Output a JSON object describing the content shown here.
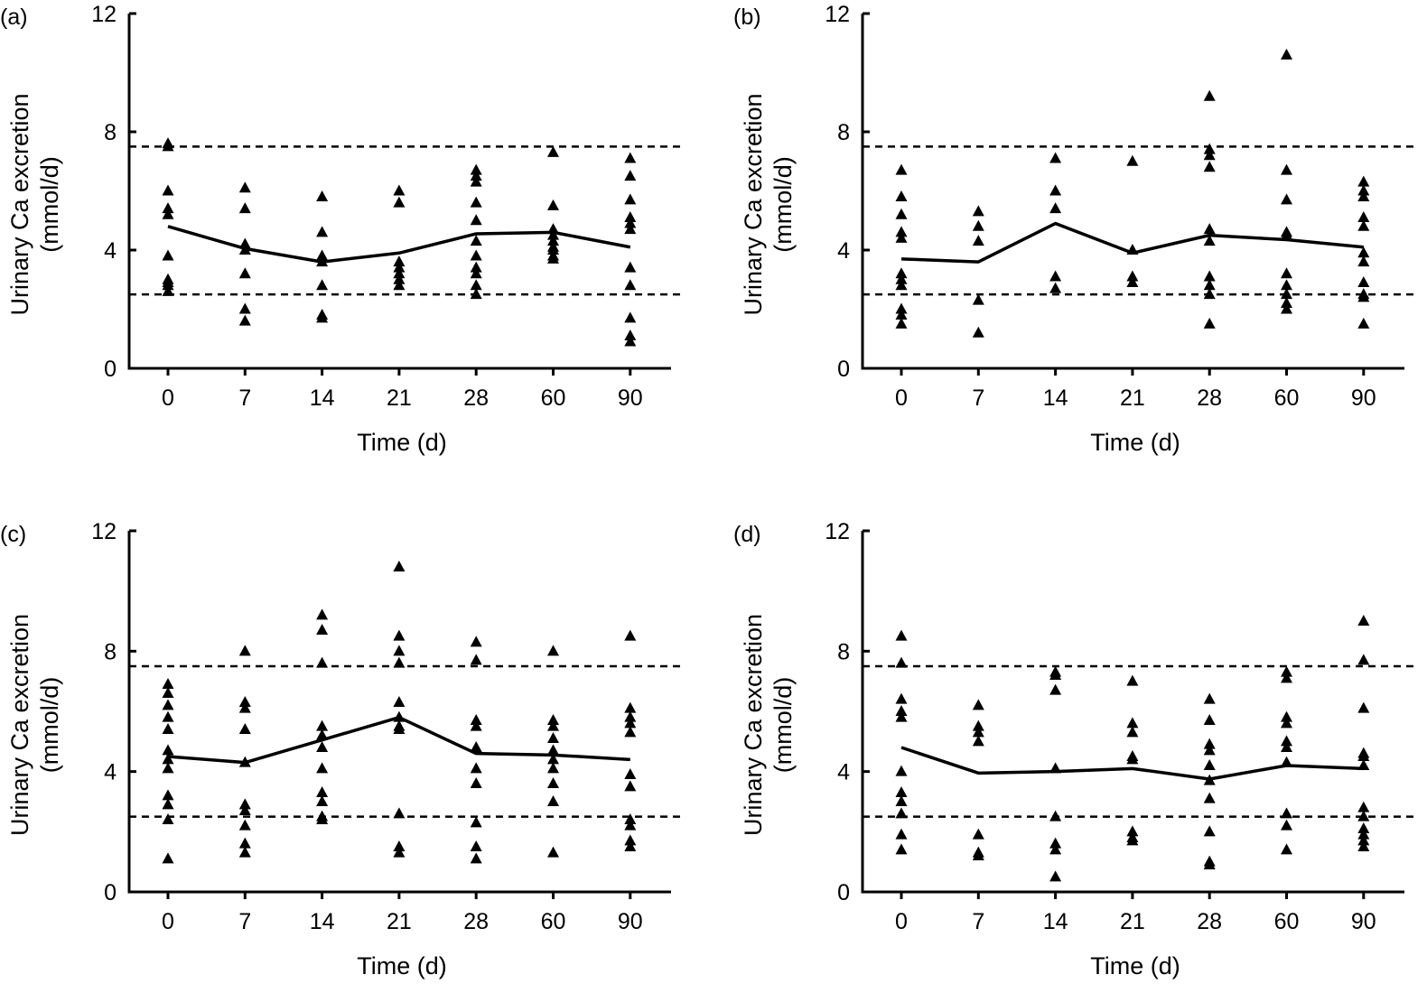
{
  "chart_data": [
    {
      "type": "scatter",
      "panel_label": "(a)",
      "xlabel": "Time (d)",
      "ylabel": "Urinary Ca excretion",
      "ylabel_unit": "(mmol/d)",
      "categories": [
        "0",
        "7",
        "14",
        "21",
        "28",
        "60",
        "90"
      ],
      "ylim": [
        0,
        12
      ],
      "yticks": [
        0,
        4,
        8,
        12
      ],
      "reference_lines": [
        2.5,
        7.5
      ],
      "points": [
        [
          7.6,
          7.5,
          6.0,
          5.4,
          5.2,
          3.8,
          3.0,
          2.9,
          2.8,
          2.6
        ],
        [
          6.1,
          5.4,
          4.2,
          4.0,
          3.2,
          2.0,
          1.6
        ],
        [
          5.8,
          4.6,
          3.8,
          3.6,
          2.8,
          1.8,
          1.7
        ],
        [
          6.0,
          5.6,
          3.6,
          3.4,
          3.2,
          3.0,
          2.8
        ],
        [
          6.7,
          6.5,
          6.3,
          5.6,
          5.0,
          4.3,
          3.8,
          3.4,
          3.2,
          2.8,
          2.5
        ],
        [
          7.3,
          5.5,
          4.7,
          4.5,
          4.3,
          4.1,
          4.0,
          3.8,
          3.7
        ],
        [
          7.1,
          6.5,
          5.7,
          5.1,
          4.9,
          4.7,
          3.4,
          2.8,
          1.7,
          1.1,
          0.9
        ]
      ],
      "mean_line": [
        4.8,
        4.05,
        3.6,
        3.9,
        4.55,
        4.6,
        4.1
      ]
    },
    {
      "type": "scatter",
      "panel_label": "(b)",
      "xlabel": "Time (d)",
      "ylabel": "Urinary Ca excretion",
      "ylabel_unit": "(mmol/d)",
      "categories": [
        "0",
        "7",
        "14",
        "21",
        "28",
        "60",
        "90"
      ],
      "ylim": [
        0,
        12
      ],
      "yticks": [
        0,
        4,
        8,
        12
      ],
      "reference_lines": [
        2.5,
        7.5
      ],
      "points": [
        [
          6.7,
          5.8,
          5.2,
          4.6,
          4.4,
          3.2,
          3.0,
          2.8,
          2.0,
          1.8,
          1.5
        ],
        [
          5.3,
          4.8,
          4.3,
          2.3,
          1.2
        ],
        [
          7.1,
          6.0,
          5.4,
          3.1,
          2.7
        ],
        [
          7.0,
          4.0,
          3.1,
          2.9
        ],
        [
          9.2,
          7.4,
          7.2,
          6.8,
          4.7,
          4.3,
          3.1,
          2.8,
          2.5,
          1.5
        ],
        [
          10.6,
          6.7,
          5.7,
          4.6,
          4.5,
          3.2,
          2.8,
          2.5,
          2.2,
          2.0
        ],
        [
          6.3,
          6.0,
          5.8,
          5.1,
          4.8,
          3.9,
          3.6,
          2.9,
          2.5,
          2.4,
          1.5
        ]
      ],
      "mean_line": [
        3.7,
        3.6,
        4.9,
        3.9,
        4.5,
        4.35,
        4.1
      ]
    },
    {
      "type": "scatter",
      "panel_label": "(c)",
      "xlabel": "Time (d)",
      "ylabel": "Urinary Ca excretion",
      "ylabel_unit": "(mmol/d)",
      "categories": [
        "0",
        "7",
        "14",
        "21",
        "28",
        "60",
        "90"
      ],
      "ylim": [
        0,
        12
      ],
      "yticks": [
        0,
        4,
        8,
        12
      ],
      "reference_lines": [
        2.5,
        7.5
      ],
      "points": [
        [
          6.9,
          6.6,
          6.2,
          5.8,
          5.4,
          4.7,
          4.4,
          4.1,
          3.2,
          2.9,
          2.4,
          1.1
        ],
        [
          8.0,
          6.3,
          6.1,
          5.4,
          4.3,
          2.9,
          2.7,
          2.2,
          1.6,
          1.3
        ],
        [
          9.2,
          8.7,
          7.6,
          5.5,
          5.2,
          4.8,
          4.1,
          3.3,
          3.0,
          2.5,
          2.4
        ],
        [
          10.8,
          8.5,
          8.0,
          7.6,
          6.3,
          5.8,
          5.5,
          5.4,
          2.6,
          1.5,
          1.3
        ],
        [
          8.3,
          7.7,
          5.7,
          5.5,
          4.8,
          4.1,
          3.6,
          2.3,
          1.5,
          1.1
        ],
        [
          8.0,
          5.7,
          5.5,
          5.1,
          4.7,
          4.4,
          4.1,
          3.6,
          3.0,
          1.3
        ],
        [
          8.5,
          6.1,
          5.8,
          5.6,
          5.3,
          3.9,
          3.5,
          2.4,
          2.2,
          1.7,
          1.5
        ]
      ],
      "mean_line": [
        4.5,
        4.3,
        5.05,
        5.8,
        4.6,
        4.55,
        4.4
      ]
    },
    {
      "type": "scatter",
      "panel_label": "(d)",
      "xlabel": "Time (d)",
      "ylabel": "Urinary Ca excretion",
      "ylabel_unit": "(mmol/d)",
      "categories": [
        "0",
        "7",
        "14",
        "21",
        "28",
        "60",
        "90"
      ],
      "ylim": [
        0,
        12
      ],
      "yticks": [
        0,
        4,
        8,
        12
      ],
      "reference_lines": [
        2.5,
        7.5
      ],
      "points": [
        [
          8.5,
          7.6,
          6.4,
          6.0,
          5.8,
          4.0,
          3.3,
          3.0,
          2.6,
          1.9,
          1.4
        ],
        [
          6.2,
          5.5,
          5.3,
          5.0,
          1.9,
          1.3,
          1.2
        ],
        [
          7.3,
          7.2,
          6.7,
          4.1,
          2.5,
          1.6,
          1.4,
          0.5
        ],
        [
          7.0,
          5.6,
          5.3,
          4.5,
          4.4,
          2.0,
          1.8,
          1.7
        ],
        [
          6.4,
          5.7,
          4.9,
          4.7,
          4.2,
          3.7,
          3.1,
          2.0,
          1.0,
          0.9
        ],
        [
          7.3,
          7.1,
          5.8,
          5.6,
          5.0,
          4.8,
          4.3,
          2.6,
          2.2,
          1.4
        ],
        [
          9.0,
          7.7,
          6.1,
          4.6,
          4.5,
          4.2,
          2.8,
          2.5,
          2.1,
          1.9,
          1.7,
          1.5
        ]
      ],
      "mean_line": [
        4.8,
        3.95,
        4.0,
        4.1,
        3.75,
        4.2,
        4.1
      ]
    }
  ]
}
